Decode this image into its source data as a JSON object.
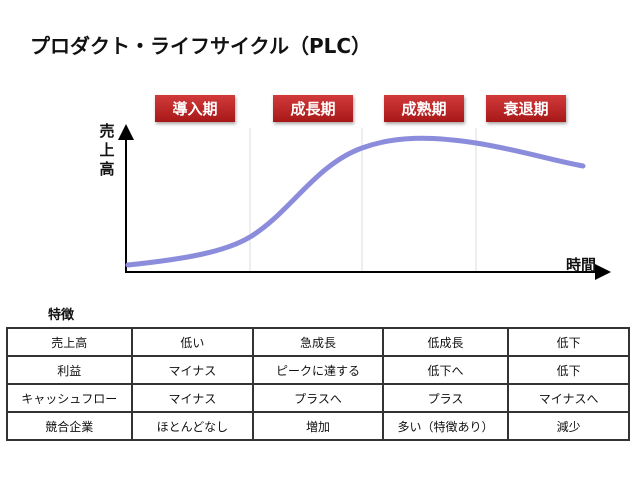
{
  "title": "プロダクト・ライフサイクル（PLC）",
  "stages": [
    "導入期",
    "成長期",
    "成熟期",
    "衰退期"
  ],
  "axes": {
    "y_label": "売上高",
    "x_label": "時間"
  },
  "colors": {
    "stage_badge": "#b82020",
    "curve": "#8c8cdc"
  },
  "table": {
    "title": "特徴",
    "rows": [
      [
        "売上高",
        "低い",
        "急成長",
        "低成長",
        "低下"
      ],
      [
        "利益",
        "マイナス",
        "ピークに達する",
        "低下へ",
        "低下"
      ],
      [
        "キャッシュフロー",
        "マイナス",
        "プラスへ",
        "プラス",
        "マイナスへ"
      ],
      [
        "競合企業",
        "ほとんどなし",
        "増加",
        "多い（特徴あり）",
        "減少"
      ]
    ]
  }
}
